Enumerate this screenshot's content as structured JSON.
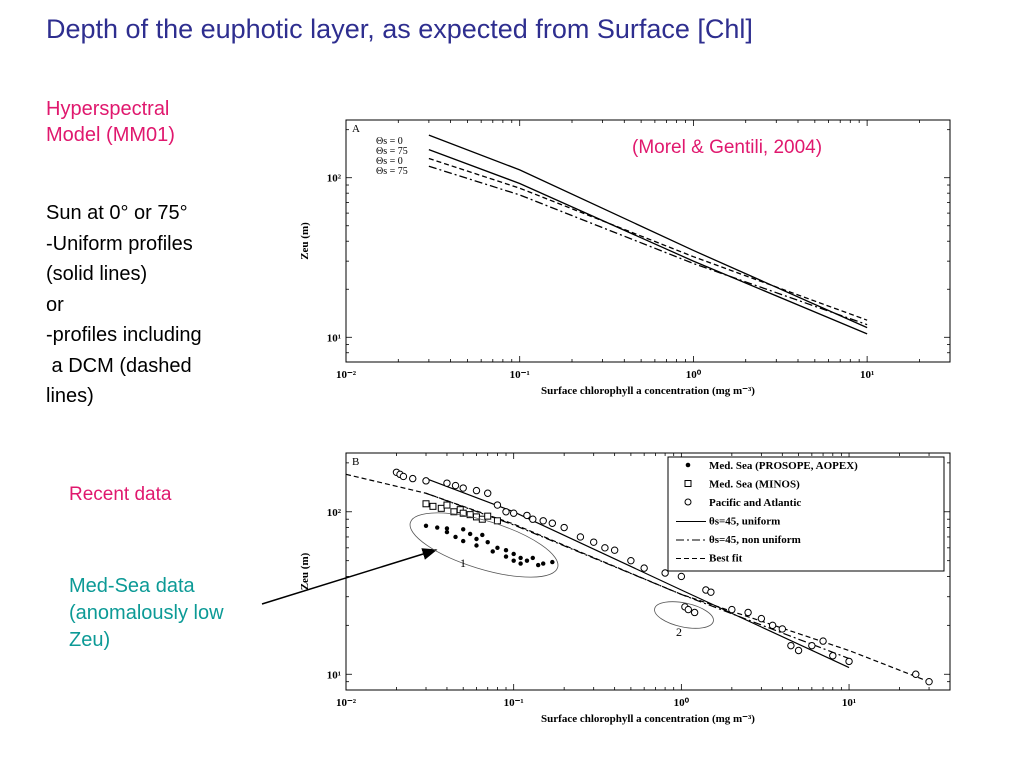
{
  "title": "Depth of the euphotic layer, as expected from Surface [Chl]",
  "left_panel": {
    "model_title": [
      "Hyperspectral",
      "Model (MM01)"
    ],
    "description": [
      "Sun at 0° or 75°",
      "-Uniform profiles",
      "(solid lines)",
      "or",
      "-profiles including",
      " a DCM (dashed",
      "lines)"
    ],
    "recent_data": "Recent data",
    "medsea_note": [
      "Med-Sea data",
      "(anomalously low",
      "Zeu)"
    ]
  },
  "colors": {
    "title": "#2e2e8f",
    "pink": "#e0186e",
    "teal": "#0c9a96"
  },
  "chart_data": [
    {
      "type": "line",
      "panel_label": "A",
      "annotation": "(Morel & Gentili, 2004)",
      "xlabel": "Surface chlorophyll a concentration (mg m⁻³)",
      "ylabel": "Zeu (m)",
      "x_scale": "log",
      "y_scale": "log",
      "xlim": [
        0.01,
        30
      ],
      "ylim": [
        7,
        230
      ],
      "x_ticks": [
        {
          "v": 0.01,
          "label": "10⁻²"
        },
        {
          "v": 0.1,
          "label": "10⁻¹"
        },
        {
          "v": 1,
          "label": "10⁰"
        },
        {
          "v": 10,
          "label": "10¹"
        }
      ],
      "y_ticks": [
        {
          "v": 10,
          "label": "10¹"
        },
        {
          "v": 100,
          "label": "10²"
        }
      ],
      "legend": [
        "Θs = 0",
        "Θs = 75",
        "Θs = 0",
        "Θs = 75"
      ],
      "series": [
        {
          "name": "Θs = 0",
          "style": "solid",
          "x": [
            0.03,
            0.1,
            1,
            10
          ],
          "y": [
            185,
            112,
            35,
            11.5
          ]
        },
        {
          "name": "Θs = 75",
          "style": "solid",
          "x": [
            0.03,
            0.1,
            1,
            10
          ],
          "y": [
            150,
            92,
            30,
            10.5
          ]
        },
        {
          "name": "Θs = 0",
          "style": "dashed",
          "x": [
            0.03,
            0.1,
            1,
            10
          ],
          "y": [
            132,
            86,
            32,
            12.8
          ]
        },
        {
          "name": "Θs = 75",
          "style": "dashdot",
          "x": [
            0.03,
            0.1,
            1,
            10
          ],
          "y": [
            118,
            78,
            29,
            12
          ]
        }
      ]
    },
    {
      "type": "scatter",
      "panel_label": "B",
      "xlabel": "Surface chlorophyll a concentration (mg m⁻³)",
      "ylabel": "Zeu (m)",
      "x_scale": "log",
      "y_scale": "log",
      "xlim": [
        0.01,
        40
      ],
      "ylim": [
        8,
        230
      ],
      "x_ticks": [
        {
          "v": 0.01,
          "label": "10⁻²"
        },
        {
          "v": 0.1,
          "label": "10⁻¹"
        },
        {
          "v": 1,
          "label": "10⁰"
        },
        {
          "v": 10,
          "label": "10¹"
        }
      ],
      "y_ticks": [
        {
          "v": 10,
          "label": "10¹"
        },
        {
          "v": 100,
          "label": "10²"
        }
      ],
      "legend": [
        {
          "label": "Med. Sea (PROSOPE, AOPEX)",
          "marker": "dot"
        },
        {
          "label": "Med. Sea (MINOS)",
          "marker": "square"
        },
        {
          "label": "Pacific and Atlantic",
          "marker": "circle"
        },
        {
          "label": "θs=45, uniform",
          "marker": "solid"
        },
        {
          "label": "θs=45, non uniform",
          "marker": "dashdot"
        },
        {
          "label": "Best fit",
          "marker": "dashed"
        }
      ],
      "cluster_labels": [
        "1",
        "2"
      ],
      "lines": [
        {
          "name": "θs=45, uniform",
          "style": "solid",
          "x": [
            0.03,
            0.1,
            1,
            10
          ],
          "y": [
            160,
            100,
            33,
            11
          ]
        },
        {
          "name": "θs=45, non uniform",
          "style": "dashdot",
          "x": [
            0.03,
            0.1,
            1,
            10
          ],
          "y": [
            130,
            83,
            31,
            12.5
          ]
        },
        {
          "name": "Best fit",
          "style": "dashed",
          "x": [
            0.01,
            0.03,
            0.1,
            1,
            10,
            30
          ],
          "y": [
            170,
            130,
            84,
            31,
            14,
            9
          ]
        }
      ],
      "points": {
        "prosope_aopex": {
          "x": [
            0.03,
            0.035,
            0.04,
            0.045,
            0.05,
            0.055,
            0.06,
            0.065,
            0.07,
            0.08,
            0.09,
            0.1,
            0.11,
            0.12,
            0.13,
            0.15,
            0.04,
            0.05,
            0.06,
            0.075,
            0.09,
            0.1,
            0.11,
            0.14,
            0.17
          ],
          "y": [
            82,
            80,
            75,
            70,
            78,
            73,
            68,
            72,
            65,
            60,
            58,
            55,
            52,
            50,
            52,
            48,
            79,
            66,
            62,
            57,
            53,
            50,
            48,
            47,
            49
          ]
        },
        "minos": {
          "x": [
            0.03,
            0.033,
            0.037,
            0.04,
            0.044,
            0.048,
            0.05,
            0.055,
            0.06,
            0.065,
            0.07,
            0.08
          ],
          "y": [
            112,
            108,
            105,
            110,
            100,
            103,
            98,
            96,
            93,
            90,
            94,
            88
          ]
        },
        "pacific_atlantic": {
          "x": [
            0.02,
            0.021,
            0.022,
            0.025,
            0.03,
            0.04,
            0.045,
            0.05,
            0.06,
            0.07,
            0.08,
            0.09,
            0.1,
            0.12,
            0.13,
            0.15,
            0.17,
            0.2,
            0.25,
            0.3,
            0.35,
            0.4,
            0.5,
            0.6,
            0.8,
            1.0,
            1.05,
            1.1,
            1.2,
            1.4,
            1.5,
            2,
            2.5,
            3,
            3.5,
            4,
            4.5,
            5,
            6,
            7,
            8,
            10,
            25,
            30
          ],
          "y": [
            175,
            170,
            165,
            160,
            155,
            150,
            145,
            140,
            135,
            130,
            110,
            100,
            98,
            95,
            90,
            88,
            85,
            80,
            70,
            65,
            60,
            58,
            50,
            45,
            42,
            40,
            26,
            25,
            24,
            33,
            32,
            25,
            24,
            22,
            20,
            19,
            15,
            14,
            15,
            16,
            13,
            12,
            10,
            9
          ]
        }
      }
    }
  ]
}
